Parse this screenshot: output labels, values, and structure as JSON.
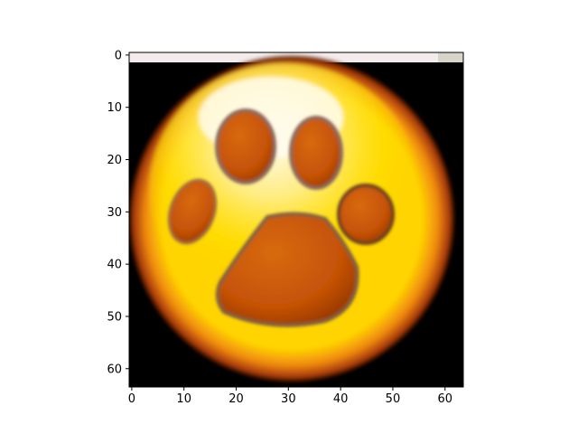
{
  "chart_data": {
    "type": "heatmap",
    "title": "",
    "xlabel": "",
    "ylabel": "",
    "xlim": [
      -0.5,
      63.5
    ],
    "ylim": [
      63.5,
      -0.5
    ],
    "x_ticks": [
      0,
      10,
      20,
      30,
      40,
      50,
      60
    ],
    "y_ticks": [
      0,
      10,
      20,
      30,
      40,
      50,
      60
    ],
    "x_tick_labels": [
      "0",
      "10",
      "20",
      "30",
      "40",
      "50",
      "60"
    ],
    "y_tick_labels": [
      "0",
      "10",
      "20",
      "30",
      "40",
      "50",
      "60"
    ],
    "image_size": [
      64,
      64
    ],
    "grid": false,
    "legend": "none",
    "content": "paw-print-icon",
    "colors": {
      "background": "#000000",
      "ring_dark": "#c8400a",
      "ring_orange": "#f08a10",
      "ring_yellow": "#ffe100",
      "highlight": "#fff8e0",
      "paw": "#c85808",
      "top_strip": "#f4ecec"
    }
  }
}
